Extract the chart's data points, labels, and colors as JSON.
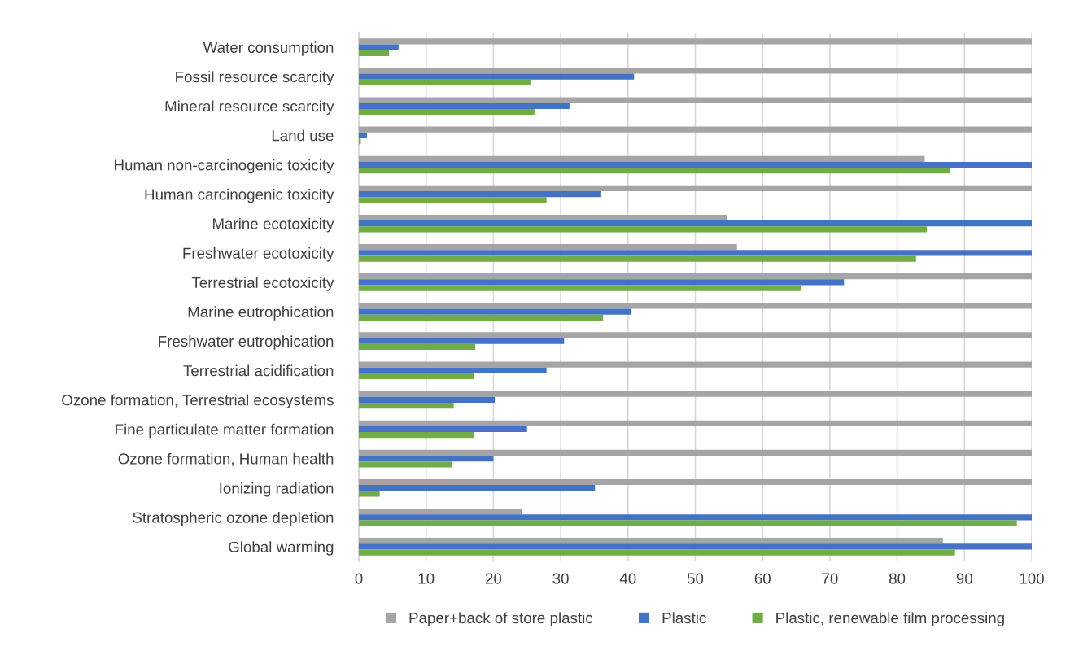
{
  "chart_data": {
    "type": "bar",
    "orientation": "horizontal",
    "categories": [
      "Water consumption",
      "Fossil resource scarcity",
      "Mineral resource scarcity",
      "Land use",
      "Human non-carcinogenic toxicity",
      "Human carcinogenic toxicity",
      "Marine ecotoxicity",
      "Freshwater ecotoxicity",
      "Terrestrial ecotoxicity",
      "Marine eutrophication",
      "Freshwater eutrophication",
      "Terrestrial acidification",
      "Ozone formation, Terrestrial ecosystems",
      "Fine particulate matter formation",
      "Ozone formation, Human health",
      "Ionizing radiation",
      "Stratospheric ozone depletion",
      "Global warming"
    ],
    "series": [
      {
        "name": "Paper+back of store plastic",
        "color": "#a5a5a5",
        "values": [
          100,
          100,
          100,
          100,
          84.1,
          100,
          54.7,
          56.2,
          100,
          100,
          100,
          100,
          100,
          100,
          100,
          100,
          24.3,
          86.8
        ]
      },
      {
        "name": "Plastic",
        "color": "#4472c4",
        "values": [
          5.9,
          40.9,
          31.3,
          1.2,
          100,
          35.9,
          100,
          100,
          72.1,
          40.5,
          30.5,
          27.9,
          20.2,
          25.0,
          20.0,
          35.1,
          100,
          100
        ]
      },
      {
        "name": "Plastic, renewable film processing",
        "color": "#70ad47",
        "values": [
          4.5,
          25.5,
          26.1,
          0.3,
          87.8,
          27.9,
          84.4,
          82.8,
          65.8,
          36.3,
          17.3,
          17.1,
          14.1,
          17.1,
          13.8,
          3.1,
          97.8,
          88.6
        ]
      }
    ],
    "xlim": [
      0,
      100
    ],
    "xticks": [
      0,
      10,
      20,
      30,
      40,
      50,
      60,
      70,
      80,
      90,
      100
    ],
    "grid": "x",
    "legend": "bottom"
  }
}
